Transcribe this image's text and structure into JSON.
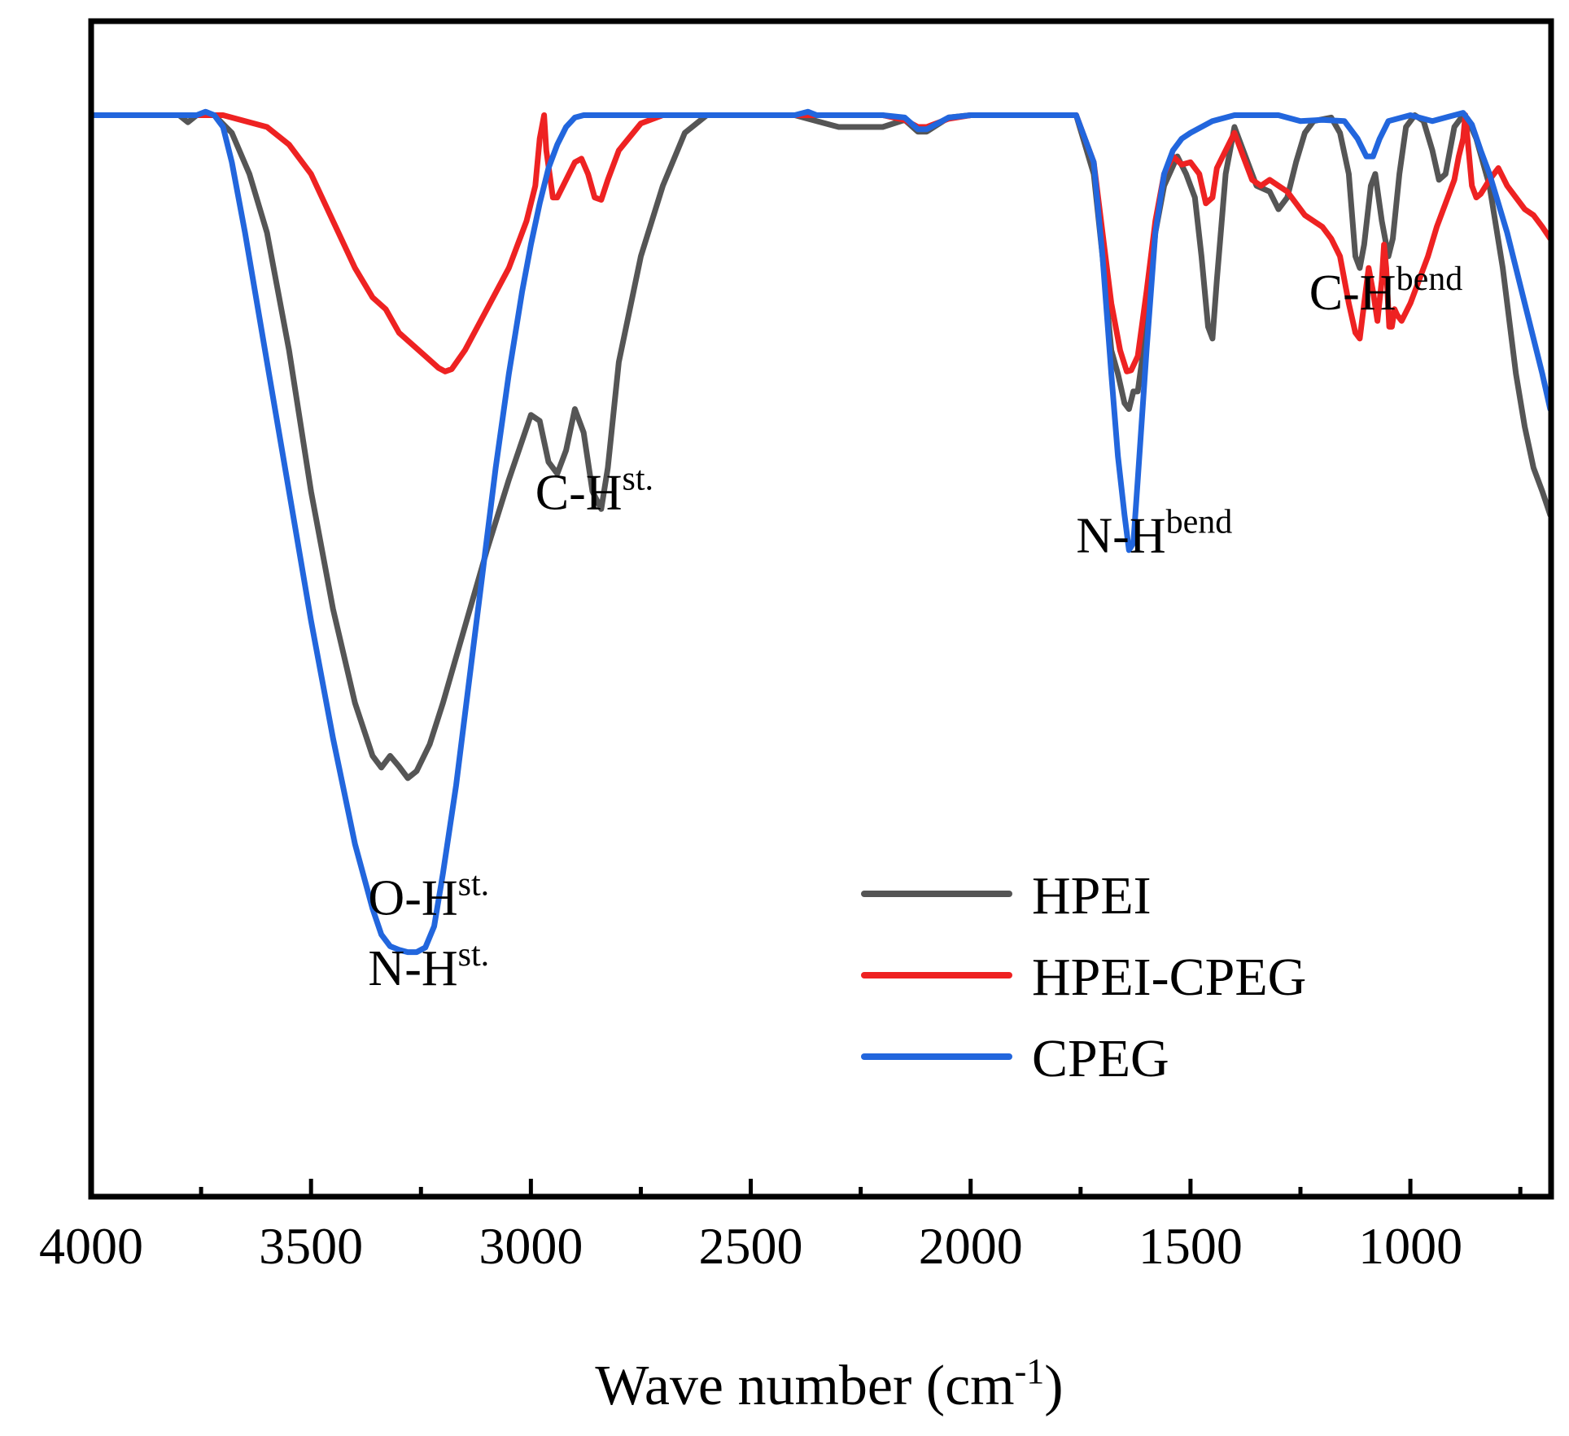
{
  "chart_data": {
    "type": "line",
    "title": "",
    "xlabel": "Wave number (cm",
    "xlabel_sup": "-1",
    "xlabel_end": ")",
    "ylabel": "",
    "xlim": [
      4000,
      680
    ],
    "ylim": [
      0,
      100
    ],
    "x_ticks": [
      4000,
      3500,
      3000,
      2500,
      2000,
      1500,
      1000
    ],
    "x_tick_labels": [
      "4000",
      "3500",
      "3000",
      "2500",
      "2000",
      "1500",
      "1000"
    ],
    "grid": false,
    "legend_position": "bottom-right",
    "series": [
      {
        "name": "HPEI",
        "color": "#555555",
        "points": [
          [
            4000,
            92
          ],
          [
            3800,
            92
          ],
          [
            3780,
            91.4
          ],
          [
            3760,
            92
          ],
          [
            3720,
            92
          ],
          [
            3680,
            90.5
          ],
          [
            3640,
            87
          ],
          [
            3600,
            82
          ],
          [
            3550,
            72
          ],
          [
            3500,
            60
          ],
          [
            3450,
            50
          ],
          [
            3400,
            42
          ],
          [
            3360,
            37.5
          ],
          [
            3340,
            36.5
          ],
          [
            3320,
            37.5
          ],
          [
            3300,
            36.6
          ],
          [
            3280,
            35.6
          ],
          [
            3260,
            36.2
          ],
          [
            3230,
            38.5
          ],
          [
            3200,
            42
          ],
          [
            3150,
            48.5
          ],
          [
            3100,
            55
          ],
          [
            3050,
            61
          ],
          [
            3000,
            66.5
          ],
          [
            2980,
            66
          ],
          [
            2960,
            62.5
          ],
          [
            2940,
            61.5
          ],
          [
            2920,
            63.5
          ],
          [
            2900,
            67
          ],
          [
            2880,
            65
          ],
          [
            2860,
            60
          ],
          [
            2840,
            58.5
          ],
          [
            2825,
            62
          ],
          [
            2800,
            71
          ],
          [
            2750,
            80
          ],
          [
            2700,
            86
          ],
          [
            2650,
            90.5
          ],
          [
            2600,
            92
          ],
          [
            2400,
            92
          ],
          [
            2300,
            91
          ],
          [
            2200,
            91
          ],
          [
            2150,
            91.6
          ],
          [
            2120,
            90.6
          ],
          [
            2100,
            90.6
          ],
          [
            2050,
            91.8
          ],
          [
            2000,
            92
          ],
          [
            1800,
            92
          ],
          [
            1760,
            92
          ],
          [
            1720,
            87
          ],
          [
            1700,
            80
          ],
          [
            1680,
            72
          ],
          [
            1665,
            70
          ],
          [
            1650,
            67.5
          ],
          [
            1640,
            67
          ],
          [
            1630,
            68.5
          ],
          [
            1620,
            68.5
          ],
          [
            1600,
            74
          ],
          [
            1580,
            82
          ],
          [
            1560,
            86
          ],
          [
            1530,
            88.5
          ],
          [
            1510,
            87
          ],
          [
            1490,
            85
          ],
          [
            1475,
            80
          ],
          [
            1460,
            74
          ],
          [
            1450,
            73
          ],
          [
            1440,
            78
          ],
          [
            1420,
            87
          ],
          [
            1400,
            91
          ],
          [
            1380,
            89
          ],
          [
            1350,
            86
          ],
          [
            1320,
            85.5
          ],
          [
            1300,
            84
          ],
          [
            1280,
            85
          ],
          [
            1260,
            88
          ],
          [
            1240,
            90.5
          ],
          [
            1220,
            91.5
          ],
          [
            1180,
            91.8
          ],
          [
            1160,
            90.5
          ],
          [
            1140,
            87
          ],
          [
            1125,
            80
          ],
          [
            1115,
            79
          ],
          [
            1105,
            81
          ],
          [
            1090,
            86
          ],
          [
            1080,
            87
          ],
          [
            1065,
            83
          ],
          [
            1050,
            80
          ],
          [
            1040,
            81.5
          ],
          [
            1025,
            87
          ],
          [
            1010,
            91
          ],
          [
            990,
            92
          ],
          [
            970,
            91.5
          ],
          [
            950,
            89
          ],
          [
            935,
            86.5
          ],
          [
            920,
            87
          ],
          [
            900,
            91
          ],
          [
            880,
            92
          ],
          [
            870,
            91.7
          ],
          [
            850,
            90
          ],
          [
            820,
            86
          ],
          [
            790,
            79
          ],
          [
            760,
            70
          ],
          [
            740,
            65.5
          ],
          [
            720,
            62
          ],
          [
            700,
            60
          ],
          [
            682,
            58
          ]
        ]
      },
      {
        "name": "HPEI-CPEG",
        "color": "#ee2222",
        "points": [
          [
            4000,
            92
          ],
          [
            3700,
            92
          ],
          [
            3600,
            91
          ],
          [
            3550,
            89.5
          ],
          [
            3500,
            87
          ],
          [
            3450,
            83
          ],
          [
            3400,
            79
          ],
          [
            3360,
            76.5
          ],
          [
            3330,
            75.5
          ],
          [
            3300,
            73.5
          ],
          [
            3270,
            72.5
          ],
          [
            3240,
            71.5
          ],
          [
            3210,
            70.5
          ],
          [
            3195,
            70.2
          ],
          [
            3180,
            70.4
          ],
          [
            3150,
            72
          ],
          [
            3100,
            75.5
          ],
          [
            3050,
            79
          ],
          [
            3010,
            83
          ],
          [
            2990,
            86
          ],
          [
            2980,
            90
          ],
          [
            2970,
            92
          ],
          [
            2965,
            89
          ],
          [
            2950,
            85
          ],
          [
            2940,
            85
          ],
          [
            2920,
            86.5
          ],
          [
            2900,
            88
          ],
          [
            2885,
            88.3
          ],
          [
            2870,
            87
          ],
          [
            2855,
            85
          ],
          [
            2840,
            84.8
          ],
          [
            2825,
            86.5
          ],
          [
            2800,
            89
          ],
          [
            2750,
            91.3
          ],
          [
            2700,
            92
          ],
          [
            2200,
            92
          ],
          [
            2150,
            91.6
          ],
          [
            2120,
            91
          ],
          [
            2100,
            91
          ],
          [
            2050,
            91.7
          ],
          [
            2000,
            92
          ],
          [
            1800,
            92
          ],
          [
            1760,
            92
          ],
          [
            1720,
            88
          ],
          [
            1700,
            82
          ],
          [
            1680,
            76
          ],
          [
            1660,
            72
          ],
          [
            1645,
            70.2
          ],
          [
            1635,
            70.3
          ],
          [
            1620,
            71.5
          ],
          [
            1600,
            77
          ],
          [
            1580,
            83
          ],
          [
            1560,
            87
          ],
          [
            1540,
            88.5
          ],
          [
            1520,
            87.8
          ],
          [
            1500,
            88
          ],
          [
            1480,
            87
          ],
          [
            1465,
            84.5
          ],
          [
            1450,
            85
          ],
          [
            1440,
            87.5
          ],
          [
            1420,
            89
          ],
          [
            1400,
            90.5
          ],
          [
            1380,
            88.5
          ],
          [
            1360,
            86.5
          ],
          [
            1340,
            86
          ],
          [
            1320,
            86.5
          ],
          [
            1300,
            86
          ],
          [
            1280,
            85.5
          ],
          [
            1260,
            84.5
          ],
          [
            1240,
            83.5
          ],
          [
            1220,
            83
          ],
          [
            1200,
            82.5
          ],
          [
            1180,
            81.5
          ],
          [
            1160,
            80
          ],
          [
            1140,
            76
          ],
          [
            1125,
            73.5
          ],
          [
            1115,
            73
          ],
          [
            1105,
            76
          ],
          [
            1095,
            79
          ],
          [
            1085,
            77
          ],
          [
            1075,
            74.5
          ],
          [
            1065,
            78
          ],
          [
            1060,
            81
          ],
          [
            1055,
            79
          ],
          [
            1048,
            74
          ],
          [
            1042,
            74
          ],
          [
            1036,
            75.5
          ],
          [
            1030,
            75
          ],
          [
            1020,
            74.5
          ],
          [
            1000,
            76
          ],
          [
            980,
            78
          ],
          [
            960,
            80
          ],
          [
            940,
            82.5
          ],
          [
            920,
            84.5
          ],
          [
            900,
            86.5
          ],
          [
            890,
            88.5
          ],
          [
            880,
            90
          ],
          [
            875,
            92
          ],
          [
            870,
            90
          ],
          [
            860,
            86
          ],
          [
            850,
            85
          ],
          [
            840,
            85.3
          ],
          [
            820,
            86.5
          ],
          [
            800,
            87.5
          ],
          [
            780,
            86
          ],
          [
            760,
            85
          ],
          [
            740,
            84
          ],
          [
            720,
            83.5
          ],
          [
            700,
            82.5
          ],
          [
            682,
            81.5
          ]
        ]
      },
      {
        "name": "CPEG",
        "color": "#2266dd",
        "points": [
          [
            4000,
            92
          ],
          [
            3760,
            92
          ],
          [
            3740,
            92.3
          ],
          [
            3720,
            92
          ],
          [
            3700,
            91
          ],
          [
            3680,
            88
          ],
          [
            3650,
            82
          ],
          [
            3600,
            71
          ],
          [
            3550,
            60
          ],
          [
            3500,
            49
          ],
          [
            3450,
            39
          ],
          [
            3400,
            30
          ],
          [
            3360,
            24.5
          ],
          [
            3340,
            22.3
          ],
          [
            3320,
            21.3
          ],
          [
            3300,
            21
          ],
          [
            3280,
            20.8
          ],
          [
            3260,
            20.8
          ],
          [
            3240,
            21.2
          ],
          [
            3220,
            23
          ],
          [
            3200,
            27.5
          ],
          [
            3170,
            35
          ],
          [
            3140,
            44
          ],
          [
            3110,
            53
          ],
          [
            3080,
            62
          ],
          [
            3050,
            70
          ],
          [
            3020,
            77
          ],
          [
            3000,
            81
          ],
          [
            2980,
            84.5
          ],
          [
            2960,
            87.5
          ],
          [
            2940,
            89.5
          ],
          [
            2920,
            91
          ],
          [
            2900,
            91.8
          ],
          [
            2880,
            92
          ],
          [
            2400,
            92
          ],
          [
            2370,
            92.3
          ],
          [
            2350,
            92
          ],
          [
            2200,
            92
          ],
          [
            2150,
            91.8
          ],
          [
            2120,
            90.8
          ],
          [
            2100,
            90.8
          ],
          [
            2050,
            91.8
          ],
          [
            2000,
            92
          ],
          [
            1800,
            92
          ],
          [
            1760,
            92
          ],
          [
            1720,
            88
          ],
          [
            1700,
            80
          ],
          [
            1680,
            70
          ],
          [
            1665,
            63
          ],
          [
            1650,
            58
          ],
          [
            1640,
            55
          ],
          [
            1630,
            55.6
          ],
          [
            1620,
            61
          ],
          [
            1600,
            72
          ],
          [
            1580,
            82
          ],
          [
            1560,
            87
          ],
          [
            1540,
            89
          ],
          [
            1520,
            90
          ],
          [
            1500,
            90.5
          ],
          [
            1450,
            91.5
          ],
          [
            1400,
            92
          ],
          [
            1300,
            92
          ],
          [
            1250,
            91.5
          ],
          [
            1200,
            91.6
          ],
          [
            1150,
            91.5
          ],
          [
            1120,
            90
          ],
          [
            1100,
            88.5
          ],
          [
            1085,
            88.5
          ],
          [
            1070,
            90
          ],
          [
            1050,
            91.5
          ],
          [
            1000,
            92
          ],
          [
            950,
            91.5
          ],
          [
            900,
            92
          ],
          [
            880,
            92.2
          ],
          [
            860,
            91.2
          ],
          [
            840,
            89
          ],
          [
            820,
            87
          ],
          [
            800,
            84.5
          ],
          [
            780,
            82
          ],
          [
            760,
            79
          ],
          [
            740,
            76
          ],
          [
            720,
            73
          ],
          [
            700,
            70
          ],
          [
            682,
            67
          ]
        ]
      }
    ],
    "annotations": [
      {
        "text": "O-H",
        "sup": "st.",
        "x": 3370,
        "y": 24
      },
      {
        "text": "N-H",
        "sup": "st.",
        "x": 3370,
        "y": 18
      },
      {
        "text": "C-H",
        "sup": "st.",
        "x": 2990,
        "y": 58.5
      },
      {
        "text": "N-H",
        "sup": "bend",
        "x": 1760,
        "y": 54.8
      },
      {
        "text": "C-H",
        "sup": "bend",
        "x": 1230,
        "y": 75.5
      }
    ],
    "legend": [
      {
        "label": "HPEI",
        "color": "#555555"
      },
      {
        "label": "HPEI-CPEG",
        "color": "#ee2222"
      },
      {
        "label": "CPEG",
        "color": "#2266dd"
      }
    ]
  }
}
